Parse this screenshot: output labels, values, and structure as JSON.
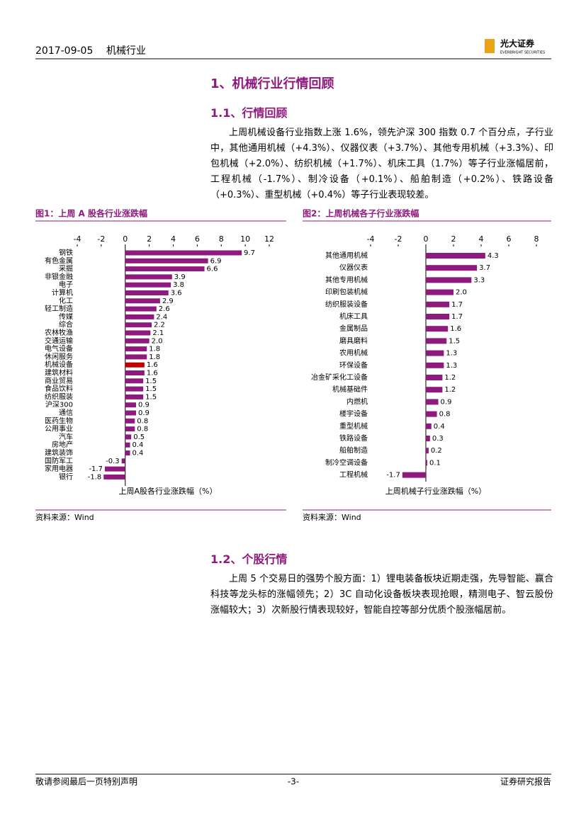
{
  "header": {
    "date": "2017-09-05",
    "industry": "机械行业",
    "logo": "光大证券",
    "logo_en": "EVERBRIGHT SECURITIES"
  },
  "section": {
    "title": "1、机械行业行情回顾"
  },
  "subsection1": {
    "title": "1.1、行情回顾",
    "text": "上周机械设备行业指数上涨 1.6%，领先沪深 300 指数 0.7 个百分点，子行业中，其他通用机械（+4.3%）、仪器仪表（+3.7%）、其他专用机械（+3.3%）、印包机械（+2.0%）、纺织机械（+1.7%）、机床工具（1.7%）等子行业涨幅居前，工程机械（-1.7%）、制冷设备（+0.1%）、船舶制造（+0.2%）、铁路设备（+0.3%）、重型机械（+0.4%）等子行业表现较差。"
  },
  "figures": [
    {
      "caption": "图1：上周 A 股各行业涨跌幅",
      "source": "资料来源：Wind"
    },
    {
      "caption": "图2：上周机械各子行业涨跌幅",
      "source": "资料来源：Wind"
    }
  ],
  "chart_data": [
    {
      "type": "hbar",
      "x_label": "上周A股各行业涨跌幅（%）",
      "color": "#8e1a7d",
      "highlight": {
        "category": "机械设备",
        "color": "#c00000"
      },
      "categories": [
        "钢铁",
        "有色金属",
        "采掘",
        "非银金融",
        "电子",
        "计算机",
        "化工",
        "轻工制造",
        "传媒",
        "综合",
        "农林牧渔",
        "交通运输",
        "电气设备",
        "休闲服务",
        "机械设备",
        "建筑材料",
        "商业贸易",
        "食品饮料",
        "纺织服装",
        "沪深300",
        "通信",
        "医药生物",
        "公用事业",
        "汽车",
        "房地产",
        "建筑装饰",
        "国防军工",
        "家用电器",
        "银行"
      ],
      "values": [
        9.7,
        6.9,
        6.6,
        3.9,
        3.8,
        3.6,
        2.9,
        2.6,
        2.4,
        2.2,
        2.1,
        2.0,
        1.8,
        1.8,
        1.6,
        1.6,
        1.5,
        1.5,
        1.5,
        0.9,
        0.9,
        0.8,
        0.8,
        0.5,
        0.4,
        0.4,
        -0.3,
        -1.7,
        -1.8
      ],
      "value_labels": [
        "9.7",
        "6.9",
        "6.6",
        "3.9",
        "3.8",
        "3.6",
        "2.9",
        "2.6",
        "2.4",
        "2.2",
        "2.1",
        "2.0",
        "1.8",
        "1.8",
        "1.6",
        "1.6",
        "1.5",
        "1.5",
        "1.5",
        "0.9",
        "0.9",
        "0.8",
        "0.8",
        "0.5",
        "0.4",
        "0.4",
        "-0.3",
        "-1.7",
        "-1.8"
      ],
      "xlim": [
        -4,
        12
      ],
      "xticks": [
        -4,
        -2,
        0,
        2,
        4,
        6,
        8,
        10,
        12
      ]
    },
    {
      "type": "hbar",
      "x_label": "上周机械子行业涨跌幅（%）",
      "color": "#8e1a7d",
      "categories": [
        "其他通用机械",
        "仪器仪表",
        "其他专用机械",
        "印刷包装机械",
        "纺织服装设备",
        "机床工具",
        "金属制品",
        "磨具磨料",
        "农用机械",
        "环保设备",
        "冶金矿采化工设备",
        "机械基础件",
        "内燃机",
        "楼宇设备",
        "重型机械",
        "铁路设备",
        "船舶制造",
        "制冷空调设备",
        "工程机械"
      ],
      "values": [
        4.3,
        3.7,
        3.3,
        2.0,
        1.7,
        1.7,
        1.6,
        1.5,
        1.3,
        1.3,
        1.2,
        1.2,
        0.9,
        0.8,
        0.4,
        0.3,
        0.2,
        0.1,
        -1.7
      ],
      "value_labels": [
        "4.3",
        "3.7",
        "3.3",
        "2.0",
        "1.7",
        "1.7",
        "1.6",
        "1.5",
        "1.3",
        "1.3",
        "1.2",
        "1.2",
        "0.9",
        "0.8",
        "0.4",
        "0.3",
        "0.2",
        "0.1",
        "-1.7"
      ],
      "xlim": [
        -4,
        8
      ],
      "xticks": [
        -4,
        -2,
        0,
        2,
        4,
        6,
        8
      ]
    }
  ],
  "subsection2": {
    "title": "1.2、个股行情",
    "text": "上周 5 个交易日的强势个股方面：1）锂电装备板块近期走强，先导智能、赢合科技等龙头标的涨幅领先；2）3C 自动化设备板块表现抢眼，精测电子、智云股份涨幅较大；3）次新股行情表现较好，智能自控等部分优质个股涨幅居前。"
  },
  "footer": {
    "left": "敬请参阅最后一页特别声明",
    "page": "-3-",
    "right": "证券研究报告"
  }
}
